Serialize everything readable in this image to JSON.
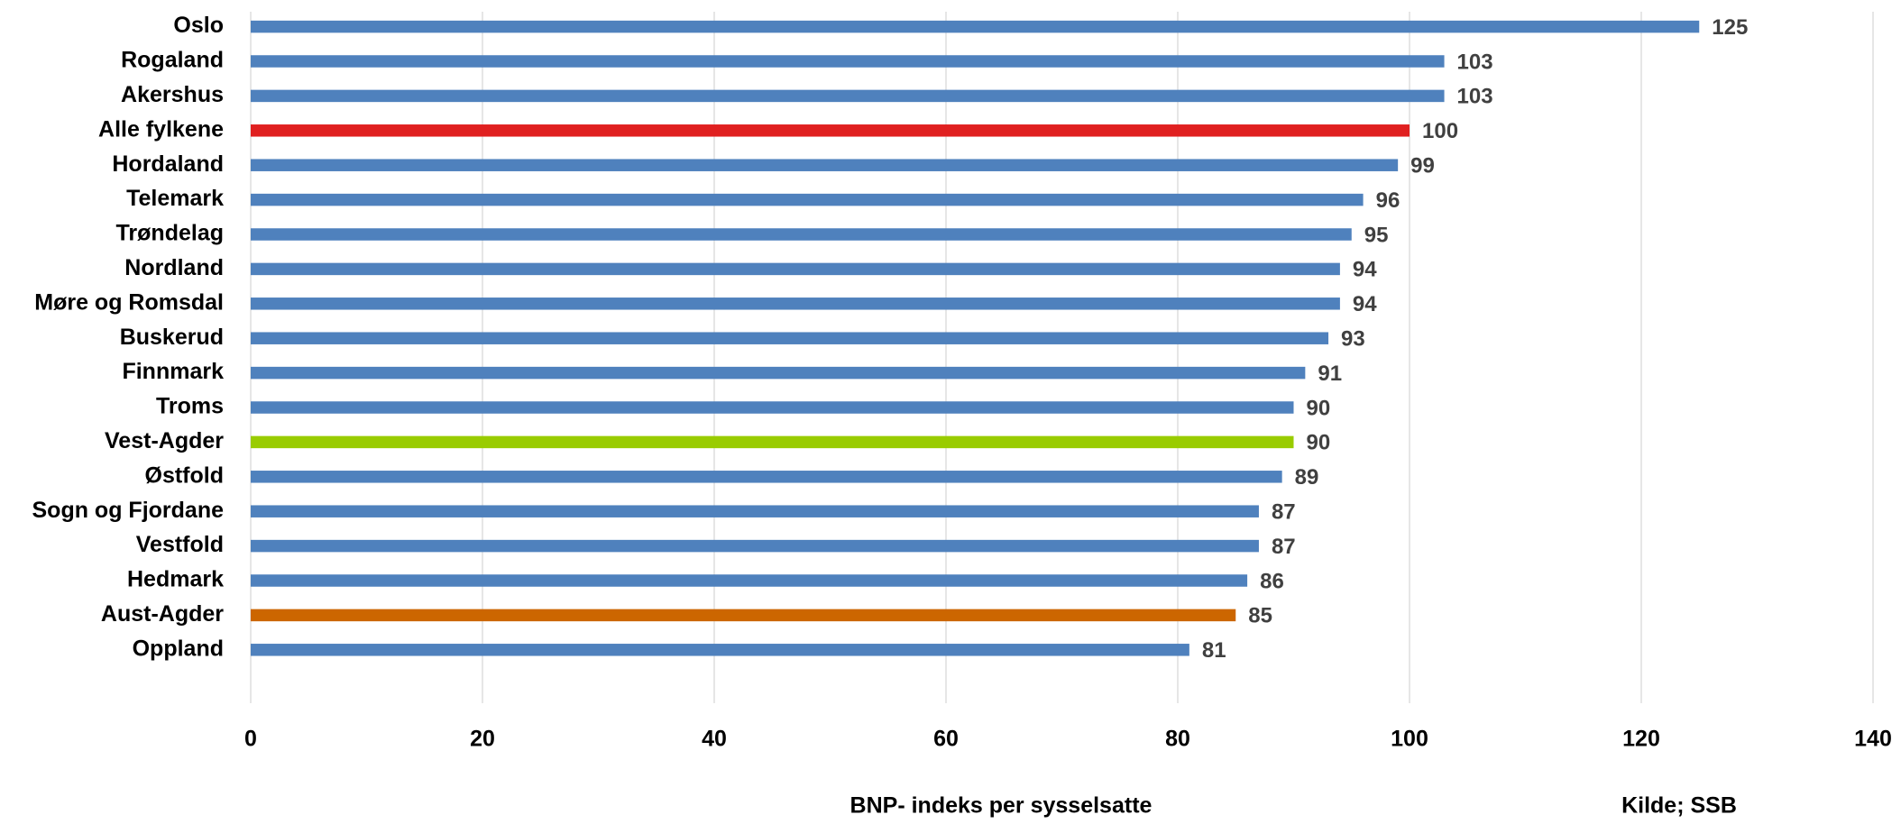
{
  "chart_data": {
    "type": "bar",
    "orientation": "horizontal",
    "categories": [
      "Oslo",
      "Rogaland",
      "Akershus",
      "Alle fylkene",
      "Hordaland",
      "Telemark",
      "Trøndelag",
      "Nordland",
      "Møre og Romsdal",
      "Buskerud",
      "Finnmark",
      "Troms",
      "Vest-Agder",
      "Østfold",
      "Sogn og Fjordane",
      "Vestfold",
      "Hedmark",
      "Aust-Agder",
      "Oppland"
    ],
    "values": [
      125,
      103,
      103,
      100,
      99,
      96,
      95,
      94,
      94,
      93,
      91,
      90,
      90,
      89,
      87,
      87,
      86,
      85,
      81
    ],
    "colors": [
      "#4f81bd",
      "#4f81bd",
      "#4f81bd",
      "#e02020",
      "#4f81bd",
      "#4f81bd",
      "#4f81bd",
      "#4f81bd",
      "#4f81bd",
      "#4f81bd",
      "#4f81bd",
      "#4f81bd",
      "#99cc00",
      "#4f81bd",
      "#4f81bd",
      "#4f81bd",
      "#4f81bd",
      "#cc6600",
      "#4f81bd"
    ],
    "xlim": [
      0,
      140
    ],
    "xticks": [
      0,
      20,
      40,
      60,
      80,
      100,
      120,
      140
    ],
    "grid": true,
    "xlabel": "BNP- indeks per sysselsatte",
    "source": "Kilde; SSB"
  }
}
